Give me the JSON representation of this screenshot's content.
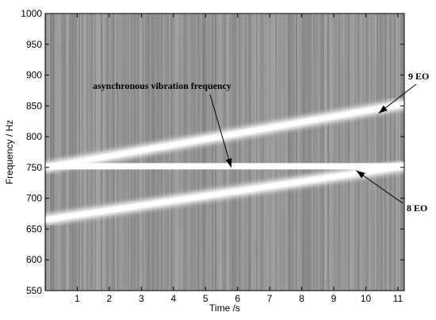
{
  "chart_data": {
    "type": "heatmap",
    "title": "",
    "xlabel": "Time /s",
    "ylabel": "Frequency / Hz",
    "xlim": [
      0,
      11.2
    ],
    "ylim": [
      550,
      1000
    ],
    "xticks": [
      1,
      2,
      3,
      4,
      5,
      6,
      7,
      8,
      9,
      10,
      11
    ],
    "yticks": [
      550,
      600,
      650,
      700,
      750,
      800,
      850,
      900,
      950,
      1000
    ],
    "grid": false,
    "legend": "none",
    "colors": {
      "background": "#8c8c8c",
      "ridge": "#ffffff"
    },
    "series": [
      {
        "name": "8 EO",
        "x": [
          0,
          11.2
        ],
        "y": [
          665,
          752
        ]
      },
      {
        "name": "9 EO",
        "x": [
          0,
          11.2
        ],
        "y": [
          750,
          853
        ]
      },
      {
        "name": "asynchronous vibration frequency",
        "x": [
          0,
          11.2
        ],
        "y": [
          752,
          752
        ]
      }
    ],
    "annotations": [
      {
        "text": "asynchronous vibration frequency",
        "points_to": [
          5.8,
          750
        ]
      },
      {
        "text": "9 EO",
        "points_to": [
          10.4,
          838
        ]
      },
      {
        "text": "8 EO",
        "points_to": [
          9.7,
          745
        ]
      }
    ]
  }
}
